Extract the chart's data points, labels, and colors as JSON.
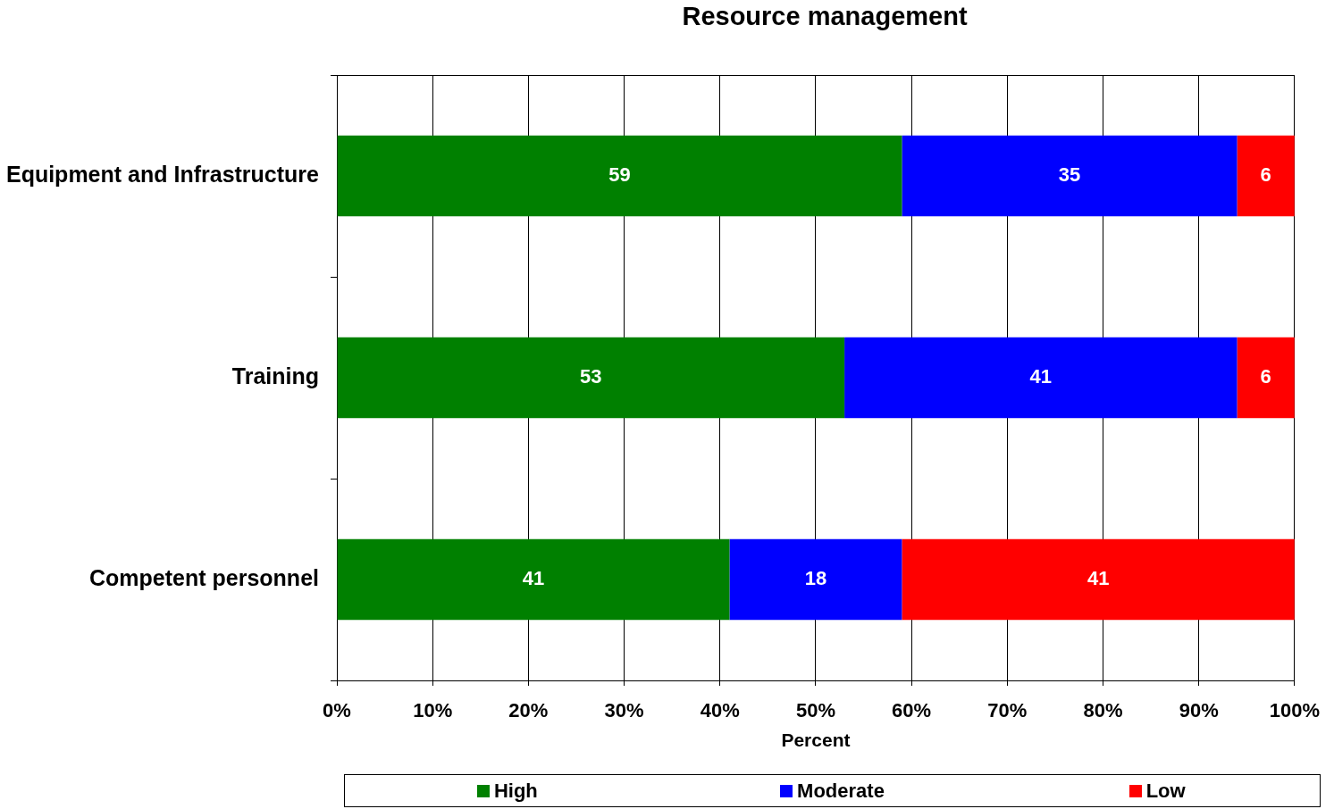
{
  "chart_data": {
    "type": "bar",
    "orientation": "horizontal",
    "stacked": true,
    "title": "Resource management",
    "xlabel": "Percent",
    "categories": [
      "Equipment and Infrastructure",
      "Training",
      "Competent personnel"
    ],
    "series": [
      {
        "name": "High",
        "color": "#008000",
        "values": [
          59,
          53,
          41
        ]
      },
      {
        "name": "Moderate",
        "color": "#0000ff",
        "values": [
          35,
          41,
          18
        ]
      },
      {
        "name": "Low",
        "color": "#ff0000",
        "values": [
          6,
          6,
          41
        ]
      }
    ],
    "xlim": [
      0,
      100
    ],
    "xticks": [
      {
        "value": 0,
        "label": "0%"
      },
      {
        "value": 10,
        "label": "10%"
      },
      {
        "value": 20,
        "label": "20%"
      },
      {
        "value": 30,
        "label": "30%"
      },
      {
        "value": 40,
        "label": "40%"
      },
      {
        "value": 50,
        "label": "50%"
      },
      {
        "value": 60,
        "label": "60%"
      },
      {
        "value": 70,
        "label": "70%"
      },
      {
        "value": 80,
        "label": "80%"
      },
      {
        "value": 90,
        "label": "90%"
      },
      {
        "value": 100,
        "label": "100%"
      }
    ],
    "grid": "x",
    "legend": "bottom",
    "data_labels": true
  }
}
